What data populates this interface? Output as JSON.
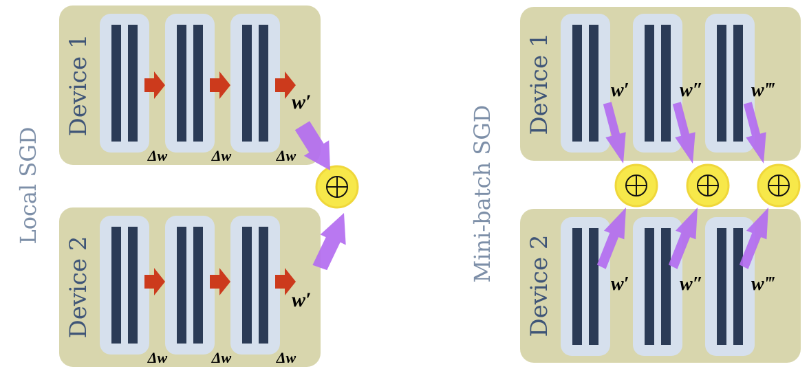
{
  "panels": [
    {
      "title": "Local SGD",
      "devices": [
        {
          "label": "Device 1",
          "deltas": [
            "Δw",
            "Δw",
            "Δw"
          ],
          "weight": "w′"
        },
        {
          "label": "Device 2",
          "deltas": [
            "Δw",
            "Δw",
            "Δw"
          ],
          "weight": "w′"
        }
      ],
      "aggregator": "⊕"
    },
    {
      "title": "Mini-batch SGD",
      "devices": [
        {
          "label": "Device 1",
          "weights": [
            "w′",
            "w″",
            "w‴"
          ]
        },
        {
          "label": "Device 2",
          "weights": [
            "w′",
            "w″",
            "w‴"
          ]
        }
      ],
      "aggregator": "⊕"
    }
  ],
  "colors": {
    "device_bg": "#d8d6ad",
    "model_bg": "#d6e0ed",
    "layer_bar": "#2b3b56",
    "step_arrow": "#cc3a1c",
    "comm_arrow": "#b36cf0",
    "aggregator_fill": "#f7e84a",
    "aggregator_ring": "#efd73a",
    "device_text": "#3f5577"
  }
}
